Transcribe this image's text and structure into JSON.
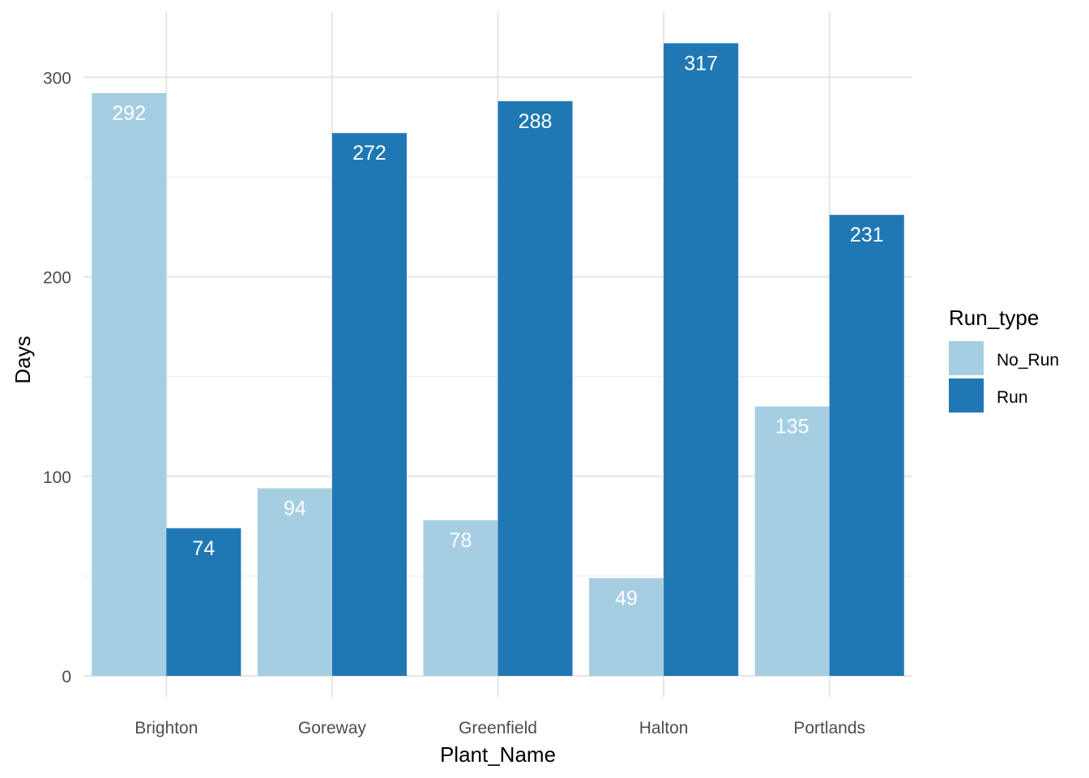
{
  "chart_data": {
    "type": "bar",
    "xlabel": "Plant_Name",
    "ylabel": "Days",
    "categories": [
      "Brighton",
      "Goreway",
      "Greenfield",
      "Halton",
      "Portlands"
    ],
    "series": [
      {
        "name": "No_Run",
        "color": "#a6cee3",
        "values": [
          292,
          94,
          78,
          49,
          135
        ]
      },
      {
        "name": "Run",
        "color": "#1f78b4",
        "values": [
          74,
          272,
          288,
          317,
          231
        ]
      }
    ],
    "ylim": [
      0,
      330
    ],
    "yticks": [
      0,
      100,
      200,
      300
    ],
    "grid": true,
    "legend": {
      "title": "Run_type",
      "position": "right"
    }
  }
}
